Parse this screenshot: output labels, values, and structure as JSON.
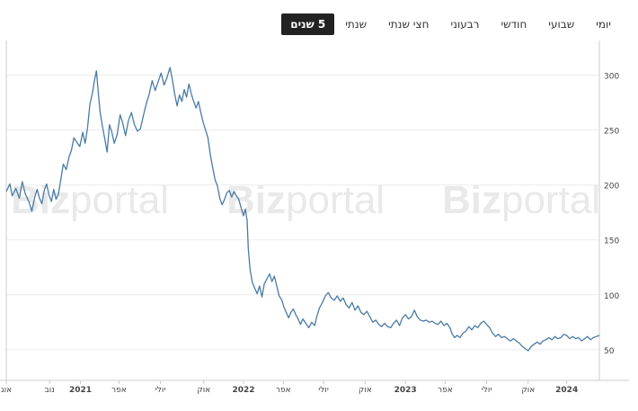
{
  "tabs": [
    {
      "key": "daily",
      "label": "יומי"
    },
    {
      "key": "weekly",
      "label": "שבועי"
    },
    {
      "key": "monthly",
      "label": "חודשי"
    },
    {
      "key": "quarterly",
      "label": "רבעוני"
    },
    {
      "key": "half",
      "label": "חצי שנתי"
    },
    {
      "key": "yearly",
      "label": "שנתי"
    },
    {
      "key": "five_years",
      "label": "5 שנים",
      "active": true
    }
  ],
  "watermark": {
    "bold": "Biz",
    "light": "portal"
  },
  "chart_data": {
    "type": "line",
    "title": "",
    "xlabel": "",
    "ylabel": "",
    "ylim": [
      22,
      330
    ],
    "yticks": [
      50,
      100,
      150,
      200,
      250,
      300
    ],
    "xlim": [
      0,
      1
    ],
    "grid": true,
    "colors": {
      "line": "#4a7aa5",
      "grid": "#ececec",
      "axis": "#cccccc",
      "tick_text": "#444444"
    },
    "xticks": [
      {
        "x": 0.0,
        "label": "אוג",
        "bold": false
      },
      {
        "x": 0.073,
        "label": "נוב",
        "bold": false
      },
      {
        "x": 0.125,
        "label": "2021",
        "bold": true
      },
      {
        "x": 0.19,
        "label": "אפר",
        "bold": false
      },
      {
        "x": 0.26,
        "label": "יולי",
        "bold": false
      },
      {
        "x": 0.333,
        "label": "אוק",
        "bold": false
      },
      {
        "x": 0.4,
        "label": "2022",
        "bold": true
      },
      {
        "x": 0.467,
        "label": "אפר",
        "bold": false
      },
      {
        "x": 0.535,
        "label": "יולי",
        "bold": false
      },
      {
        "x": 0.605,
        "label": "אוק",
        "bold": false
      },
      {
        "x": 0.673,
        "label": "2023",
        "bold": true
      },
      {
        "x": 0.74,
        "label": "אפר",
        "bold": false
      },
      {
        "x": 0.81,
        "label": "יולי",
        "bold": false
      },
      {
        "x": 0.88,
        "label": "אוק",
        "bold": false
      },
      {
        "x": 0.945,
        "label": "2024",
        "bold": true
      }
    ],
    "series": [
      {
        "values": [
          [
            0.0,
            194
          ],
          [
            0.006,
            201
          ],
          [
            0.01,
            190
          ],
          [
            0.016,
            197
          ],
          [
            0.022,
            188
          ],
          [
            0.027,
            203
          ],
          [
            0.032,
            192
          ],
          [
            0.038,
            185
          ],
          [
            0.043,
            176
          ],
          [
            0.048,
            189
          ],
          [
            0.052,
            196
          ],
          [
            0.056,
            188
          ],
          [
            0.06,
            183
          ],
          [
            0.064,
            195
          ],
          [
            0.068,
            201
          ],
          [
            0.072,
            191
          ],
          [
            0.076,
            185
          ],
          [
            0.08,
            196
          ],
          [
            0.084,
            187
          ],
          [
            0.088,
            192
          ],
          [
            0.092,
            205
          ],
          [
            0.096,
            219
          ],
          [
            0.101,
            214
          ],
          [
            0.106,
            226
          ],
          [
            0.11,
            232
          ],
          [
            0.114,
            243
          ],
          [
            0.119,
            239
          ],
          [
            0.124,
            235
          ],
          [
            0.129,
            248
          ],
          [
            0.133,
            238
          ],
          [
            0.137,
            252
          ],
          [
            0.141,
            274
          ],
          [
            0.145,
            283
          ],
          [
            0.149,
            296
          ],
          [
            0.152,
            304
          ],
          [
            0.155,
            285
          ],
          [
            0.158,
            267
          ],
          [
            0.162,
            254
          ],
          [
            0.166,
            242
          ],
          [
            0.17,
            230
          ],
          [
            0.174,
            255
          ],
          [
            0.178,
            248
          ],
          [
            0.182,
            238
          ],
          [
            0.187,
            246
          ],
          [
            0.192,
            264
          ],
          [
            0.196,
            257
          ],
          [
            0.201,
            245
          ],
          [
            0.206,
            259
          ],
          [
            0.211,
            266
          ],
          [
            0.216,
            255
          ],
          [
            0.221,
            249
          ],
          [
            0.226,
            251
          ],
          [
            0.231,
            263
          ],
          [
            0.236,
            274
          ],
          [
            0.241,
            283
          ],
          [
            0.246,
            295
          ],
          [
            0.251,
            286
          ],
          [
            0.256,
            294
          ],
          [
            0.261,
            302
          ],
          [
            0.266,
            291
          ],
          [
            0.271,
            298
          ],
          [
            0.276,
            307
          ],
          [
            0.28,
            296
          ],
          [
            0.284,
            283
          ],
          [
            0.288,
            272
          ],
          [
            0.292,
            282
          ],
          [
            0.296,
            276
          ],
          [
            0.3,
            287
          ],
          [
            0.304,
            280
          ],
          [
            0.308,
            292
          ],
          [
            0.312,
            283
          ],
          [
            0.316,
            276
          ],
          [
            0.32,
            270
          ],
          [
            0.324,
            276
          ],
          [
            0.328,
            266
          ],
          [
            0.332,
            257
          ],
          [
            0.336,
            250
          ],
          [
            0.34,
            243
          ],
          [
            0.344,
            228
          ],
          [
            0.348,
            216
          ],
          [
            0.352,
            205
          ],
          [
            0.356,
            199
          ],
          [
            0.36,
            188
          ],
          [
            0.364,
            182
          ],
          [
            0.368,
            187
          ],
          [
            0.372,
            193
          ],
          [
            0.376,
            195
          ],
          [
            0.38,
            189
          ],
          [
            0.384,
            194
          ],
          [
            0.388,
            190
          ],
          [
            0.392,
            187
          ],
          [
            0.396,
            179
          ],
          [
            0.4,
            172
          ],
          [
            0.403,
            178
          ],
          [
            0.406,
            168
          ],
          [
            0.408,
            142
          ],
          [
            0.411,
            123
          ],
          [
            0.415,
            111
          ],
          [
            0.419,
            106
          ],
          [
            0.423,
            101
          ],
          [
            0.427,
            108
          ],
          [
            0.431,
            98
          ],
          [
            0.435,
            110
          ],
          [
            0.44,
            115
          ],
          [
            0.444,
            119
          ],
          [
            0.448,
            112
          ],
          [
            0.452,
            117
          ],
          [
            0.456,
            108
          ],
          [
            0.46,
            99
          ],
          [
            0.464,
            96
          ],
          [
            0.468,
            89
          ],
          [
            0.472,
            84
          ],
          [
            0.476,
            79
          ],
          [
            0.48,
            84
          ],
          [
            0.484,
            87
          ],
          [
            0.488,
            82
          ],
          [
            0.492,
            78
          ],
          [
            0.496,
            73
          ],
          [
            0.5,
            78
          ],
          [
            0.505,
            74
          ],
          [
            0.51,
            70
          ],
          [
            0.515,
            75
          ],
          [
            0.52,
            72
          ],
          [
            0.524,
            81
          ],
          [
            0.528,
            88
          ],
          [
            0.533,
            93
          ],
          [
            0.538,
            99
          ],
          [
            0.543,
            102
          ],
          [
            0.548,
            97
          ],
          [
            0.553,
            95
          ],
          [
            0.558,
            99
          ],
          [
            0.563,
            94
          ],
          [
            0.568,
            97
          ],
          [
            0.573,
            91
          ],
          [
            0.578,
            88
          ],
          [
            0.583,
            93
          ],
          [
            0.588,
            86
          ],
          [
            0.593,
            90
          ],
          [
            0.598,
            84
          ],
          [
            0.603,
            82
          ],
          [
            0.608,
            85
          ],
          [
            0.613,
            80
          ],
          [
            0.618,
            75
          ],
          [
            0.623,
            77
          ],
          [
            0.628,
            73
          ],
          [
            0.633,
            71
          ],
          [
            0.638,
            74
          ],
          [
            0.643,
            71
          ],
          [
            0.648,
            70
          ],
          [
            0.653,
            74
          ],
          [
            0.658,
            77
          ],
          [
            0.663,
            72
          ],
          [
            0.668,
            79
          ],
          [
            0.673,
            82
          ],
          [
            0.678,
            78
          ],
          [
            0.683,
            80
          ],
          [
            0.688,
            86
          ],
          [
            0.693,
            80
          ],
          [
            0.698,
            77
          ],
          [
            0.703,
            76
          ],
          [
            0.708,
            77
          ],
          [
            0.713,
            75
          ],
          [
            0.718,
            76
          ],
          [
            0.723,
            74
          ],
          [
            0.728,
            73
          ],
          [
            0.733,
            76
          ],
          [
            0.738,
            72
          ],
          [
            0.743,
            74
          ],
          [
            0.748,
            70
          ],
          [
            0.752,
            64
          ],
          [
            0.756,
            61
          ],
          [
            0.76,
            63
          ],
          [
            0.765,
            61
          ],
          [
            0.77,
            65
          ],
          [
            0.775,
            67
          ],
          [
            0.78,
            71
          ],
          [
            0.785,
            68
          ],
          [
            0.79,
            72
          ],
          [
            0.795,
            70
          ],
          [
            0.8,
            74
          ],
          [
            0.805,
            76
          ],
          [
            0.81,
            73
          ],
          [
            0.815,
            70
          ],
          [
            0.82,
            65
          ],
          [
            0.825,
            62
          ],
          [
            0.83,
            64
          ],
          [
            0.835,
            61
          ],
          [
            0.84,
            62
          ],
          [
            0.845,
            60
          ],
          [
            0.85,
            58
          ],
          [
            0.855,
            60
          ],
          [
            0.86,
            58
          ],
          [
            0.865,
            56
          ],
          [
            0.87,
            53
          ],
          [
            0.875,
            51
          ],
          [
            0.88,
            49
          ],
          [
            0.885,
            53
          ],
          [
            0.89,
            55
          ],
          [
            0.895,
            57
          ],
          [
            0.9,
            55
          ],
          [
            0.905,
            58
          ],
          [
            0.91,
            59
          ],
          [
            0.915,
            61
          ],
          [
            0.92,
            59
          ],
          [
            0.925,
            62
          ],
          [
            0.93,
            60
          ],
          [
            0.935,
            61
          ],
          [
            0.94,
            64
          ],
          [
            0.945,
            63
          ],
          [
            0.95,
            60
          ],
          [
            0.955,
            62
          ],
          [
            0.96,
            60
          ],
          [
            0.965,
            61
          ],
          [
            0.97,
            58
          ],
          [
            0.975,
            60
          ],
          [
            0.98,
            62
          ],
          [
            0.985,
            59
          ],
          [
            0.99,
            61
          ],
          [
            0.995,
            62
          ],
          [
            1.0,
            63
          ]
        ]
      }
    ]
  }
}
